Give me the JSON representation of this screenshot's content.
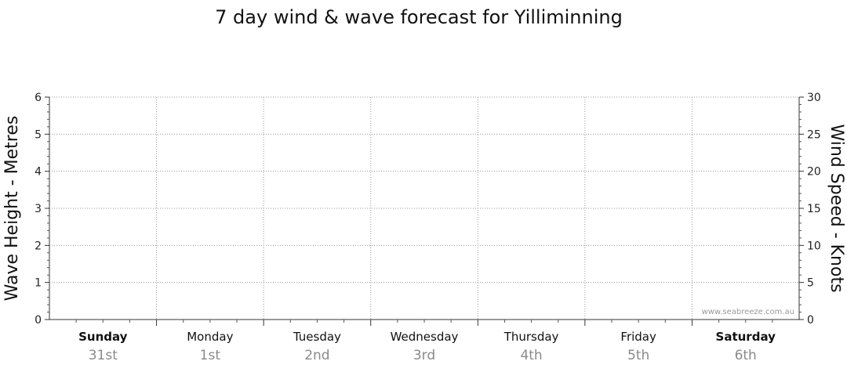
{
  "chart_data": {
    "type": "line",
    "title": "7 day wind & wave forecast for Yilliminning",
    "left_axis": {
      "label": "Wave Height - Metres",
      "range": [
        0,
        6
      ],
      "ticks": [
        0,
        1,
        2,
        3,
        4,
        5,
        6
      ]
    },
    "right_axis": {
      "label": "Wind Speed - Knots",
      "range": [
        0,
        30
      ],
      "ticks": [
        0,
        5,
        10,
        15,
        20,
        25,
        30
      ]
    },
    "days": [
      {
        "name": "Sunday",
        "date": "31st",
        "bold": true
      },
      {
        "name": "Monday",
        "date": "1st",
        "bold": false
      },
      {
        "name": "Tuesday",
        "date": "2nd",
        "bold": false
      },
      {
        "name": "Wednesday",
        "date": "3rd",
        "bold": false
      },
      {
        "name": "Thursday",
        "date": "4th",
        "bold": false
      },
      {
        "name": "Friday",
        "date": "5th",
        "bold": false
      },
      {
        "name": "Saturday",
        "date": "6th",
        "bold": true
      }
    ],
    "grid": true,
    "series": []
  },
  "watermark": "www.seabreeze.com.au"
}
